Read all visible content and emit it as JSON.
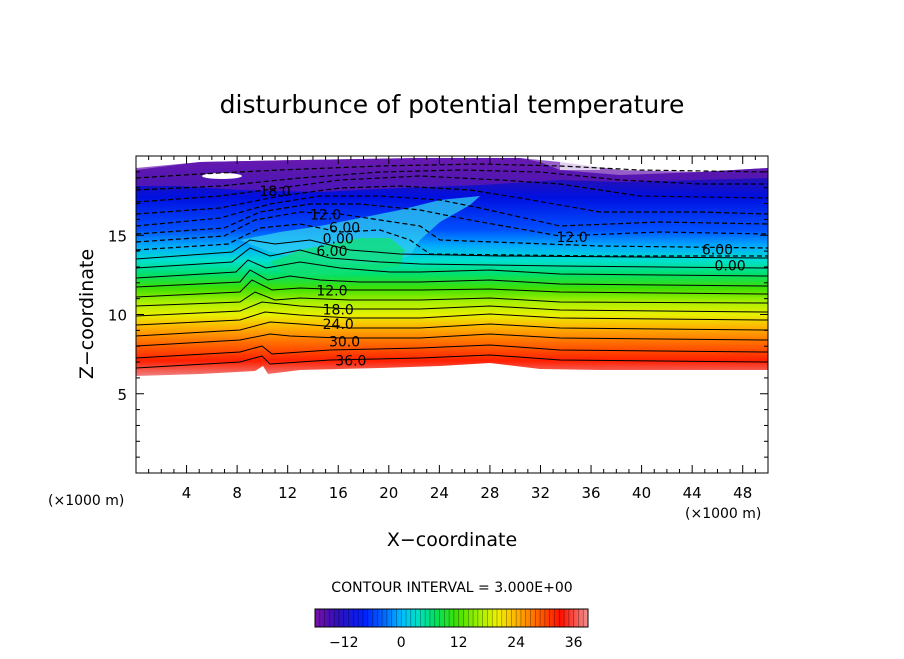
{
  "chart_data": {
    "type": "contour",
    "title": "disturbunce of potential temperature",
    "xlabel": "X−coordinate",
    "ylabel": "Z−coordinate",
    "x_unit_left": "(×1000 m)",
    "x_unit_right": "(×1000 m)",
    "xlim": [
      0,
      50
    ],
    "ylim": [
      0,
      20
    ],
    "x_ticks": [
      4,
      8,
      12,
      16,
      20,
      24,
      28,
      32,
      36,
      40,
      44,
      48
    ],
    "x_tick_labels": [
      "4",
      "8",
      "12",
      "16",
      "20",
      "24",
      "28",
      "32",
      "36",
      "40",
      "44",
      "48"
    ],
    "y_ticks": [
      5,
      10,
      15
    ],
    "y_tick_labels": [
      "5",
      "10",
      "15"
    ],
    "contour_interval_text": "CONTOUR INTERVAL = 3.000E+00",
    "contour_interval": 3.0,
    "color_range": [
      -18,
      39
    ],
    "colorbar_ticks": [
      -12,
      0,
      12,
      24,
      36
    ],
    "colorbar_tick_labels": [
      "−12",
      "0",
      "12",
      "24",
      "36"
    ],
    "contour_labels": [
      {
        "text": "18.0",
        "x": 11.0,
        "z": 17.8
      },
      {
        "text": "12.0",
        "x": 15.0,
        "z": 16.3
      },
      {
        "text": "6.00",
        "x": 16.5,
        "z": 15.5
      },
      {
        "text": "0.00",
        "x": 16.0,
        "z": 14.8
      },
      {
        "text": "6.00",
        "x": 15.5,
        "z": 14.0
      },
      {
        "text": "12.0",
        "x": 15.5,
        "z": 11.5
      },
      {
        "text": "18.0",
        "x": 16.0,
        "z": 10.3
      },
      {
        "text": "24.0",
        "x": 16.0,
        "z": 9.4
      },
      {
        "text": "30.0",
        "x": 16.5,
        "z": 8.3
      },
      {
        "text": "36.0",
        "x": 17.0,
        "z": 7.1
      },
      {
        "text": "12.0",
        "x": 34.5,
        "z": 14.9
      },
      {
        "text": "6.00",
        "x": 46.0,
        "z": 14.1
      },
      {
        "text": "0.00",
        "x": 47.0,
        "z": 13.1
      }
    ]
  }
}
